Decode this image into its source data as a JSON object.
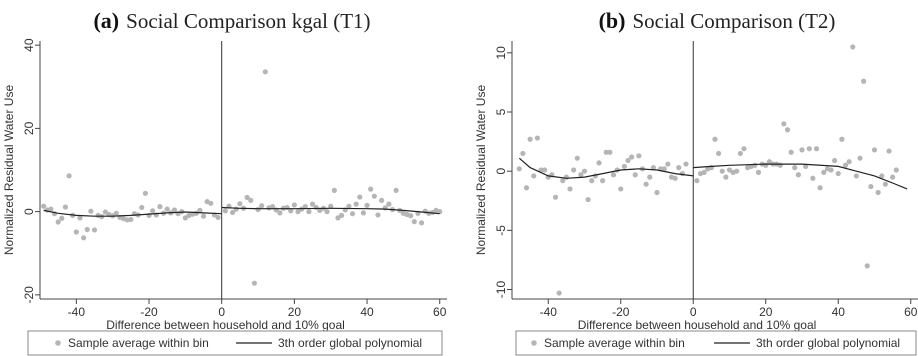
{
  "chart_data": [
    {
      "type": "scatter",
      "panel_tag": "(a)",
      "title": "Social Comparison kgal (T1)",
      "xlabel": "Difference between household and 10% goal",
      "ylabel": "Normalized Residual Water Use",
      "xlim": [
        -50,
        62
      ],
      "ylim": [
        -21,
        41
      ],
      "xticks": [
        -40,
        -20,
        0,
        20,
        40,
        60
      ],
      "yticks": [
        -20,
        0,
        20,
        40
      ],
      "cutoff": 0,
      "grid": false,
      "legend_placement": "bottom",
      "series": [
        {
          "name": "Sample average within bin",
          "kind": "points",
          "color": "#b5b5b5",
          "points": [
            [
              -49,
              1.3
            ],
            [
              -48,
              0.4
            ],
            [
              -47,
              0.6
            ],
            [
              -46,
              -0.5
            ],
            [
              -45,
              -2.5
            ],
            [
              -44,
              -1.6
            ],
            [
              -43,
              1.1
            ],
            [
              -42,
              8.6
            ],
            [
              -41,
              -0.9
            ],
            [
              -40,
              -4.9
            ],
            [
              -39,
              -1.5
            ],
            [
              -38,
              -6.3
            ],
            [
              -37,
              -4.3
            ],
            [
              -36,
              0.1
            ],
            [
              -35,
              -4.4
            ],
            [
              -34,
              -0.9
            ],
            [
              -33,
              -1.2
            ],
            [
              -32,
              -0.1
            ],
            [
              -31,
              -0.7
            ],
            [
              -30,
              -1.0
            ],
            [
              -29,
              -0.4
            ],
            [
              -28,
              -1.4
            ],
            [
              -27,
              -1.7
            ],
            [
              -26,
              -2.0
            ],
            [
              -25,
              -1.9
            ],
            [
              -24,
              -0.5
            ],
            [
              -23,
              -0.8
            ],
            [
              -22,
              1.0
            ],
            [
              -21,
              4.4
            ],
            [
              -20,
              -0.9
            ],
            [
              -19,
              0.2
            ],
            [
              -18,
              -0.8
            ],
            [
              -17,
              1.2
            ],
            [
              -16,
              -0.4
            ],
            [
              -15,
              0.6
            ],
            [
              -14,
              -0.3
            ],
            [
              -13,
              0.4
            ],
            [
              -12,
              -0.5
            ],
            [
              -11,
              0.0
            ],
            [
              -10,
              -1.5
            ],
            [
              -9,
              -0.9
            ],
            [
              -8,
              -0.6
            ],
            [
              -7,
              -0.4
            ],
            [
              -6,
              0.3
            ],
            [
              -5,
              -1.1
            ],
            [
              -4,
              2.4
            ],
            [
              -3,
              2.0
            ],
            [
              -2,
              -0.8
            ],
            [
              -1,
              -1.4
            ],
            [
              1,
              0.2
            ],
            [
              2,
              1.3
            ],
            [
              3,
              -0.2
            ],
            [
              4,
              0.6
            ],
            [
              5,
              1.9
            ],
            [
              6,
              0.8
            ],
            [
              7,
              3.4
            ],
            [
              8,
              2.7
            ],
            [
              9,
              -17.2
            ],
            [
              10,
              0.5
            ],
            [
              11,
              1.4
            ],
            [
              12,
              33.6
            ],
            [
              13,
              0.9
            ],
            [
              14,
              1.2
            ],
            [
              15,
              0.4
            ],
            [
              16,
              -0.3
            ],
            [
              17,
              0.8
            ],
            [
              18,
              1.0
            ],
            [
              19,
              0.2
            ],
            [
              20,
              1.6
            ],
            [
              21,
              0.0
            ],
            [
              22,
              0.6
            ],
            [
              23,
              1.2
            ],
            [
              24,
              0.0
            ],
            [
              25,
              1.8
            ],
            [
              26,
              1.0
            ],
            [
              27,
              0.3
            ],
            [
              28,
              0.8
            ],
            [
              29,
              0.0
            ],
            [
              30,
              1.3
            ],
            [
              31,
              5.1
            ],
            [
              32,
              -1.5
            ],
            [
              33,
              -0.9
            ],
            [
              34,
              0.4
            ],
            [
              35,
              1.3
            ],
            [
              36,
              -0.5
            ],
            [
              37,
              1.8
            ],
            [
              38,
              3.5
            ],
            [
              39,
              -0.3
            ],
            [
              40,
              1.5
            ],
            [
              41,
              5.4
            ],
            [
              42,
              3.7
            ],
            [
              43,
              -0.8
            ],
            [
              44,
              2.7
            ],
            [
              45,
              0.9
            ],
            [
              46,
              1.8
            ],
            [
              47,
              0.5
            ],
            [
              48,
              5.1
            ],
            [
              49,
              0.3
            ],
            [
              50,
              -0.4
            ],
            [
              51,
              -0.7
            ],
            [
              52,
              -1.0
            ],
            [
              53,
              -2.4
            ],
            [
              54,
              -0.4
            ],
            [
              55,
              -2.7
            ],
            [
              56,
              0.1
            ],
            [
              57,
              -0.4
            ],
            [
              58,
              -0.2
            ],
            [
              59,
              0.3
            ],
            [
              60,
              0.0
            ]
          ]
        },
        {
          "name": "3th order global polynomial",
          "kind": "curve",
          "color": "#222222",
          "segments": [
            [
              [
                -49,
                0.3
              ],
              [
                -45,
                -0.4
              ],
              [
                -40,
                -0.9
              ],
              [
                -35,
                -1.1
              ],
              [
                -30,
                -1.1
              ],
              [
                -25,
                -0.9
              ],
              [
                -20,
                -0.6
              ],
              [
                -15,
                -0.3
              ],
              [
                -10,
                -0.1
              ],
              [
                -5,
                -0.3
              ],
              [
                0,
                -0.5
              ]
            ],
            [
              [
                0,
                1.0
              ],
              [
                5,
                0.8
              ],
              [
                10,
                0.7
              ],
              [
                20,
                0.7
              ],
              [
                30,
                0.8
              ],
              [
                40,
                0.7
              ],
              [
                45,
                0.6
              ],
              [
                50,
                0.3
              ],
              [
                55,
                -0.1
              ],
              [
                60,
                -0.5
              ]
            ]
          ]
        }
      ]
    },
    {
      "type": "scatter",
      "panel_tag": "(b)",
      "title": "Social Comparison (T2)",
      "xlabel": "Difference between household and 10% goal",
      "ylabel": "Normalized Residual Water Use",
      "xlim": [
        -50,
        62
      ],
      "ylim": [
        -10.8,
        11
      ],
      "xticks": [
        -40,
        -20,
        0,
        20,
        40,
        60
      ],
      "yticks": [
        -10,
        -5,
        0,
        5,
        10
      ],
      "cutoff": 0,
      "grid": false,
      "legend_placement": "bottom",
      "series": [
        {
          "name": "Sample average within bin",
          "kind": "points",
          "color": "#b5b5b5",
          "points": [
            [
              -48,
              0.2
            ],
            [
              -47,
              1.5
            ],
            [
              -46,
              -1.4
            ],
            [
              -45,
              2.7
            ],
            [
              -44,
              -0.4
            ],
            [
              -43,
              2.8
            ],
            [
              -42,
              0.1
            ],
            [
              -41,
              0.1
            ],
            [
              -40,
              -0.5
            ],
            [
              -39,
              -0.3
            ],
            [
              -38,
              -2.2
            ],
            [
              -37,
              -10.3
            ],
            [
              -36,
              -0.8
            ],
            [
              -35,
              -0.5
            ],
            [
              -34,
              -1.5
            ],
            [
              -33,
              0.1
            ],
            [
              -32,
              1.1
            ],
            [
              -31,
              -0.3
            ],
            [
              -30,
              0.0
            ],
            [
              -29,
              -2.4
            ],
            [
              -28,
              -0.8
            ],
            [
              -27,
              -0.4
            ],
            [
              -26,
              0.7
            ],
            [
              -25,
              -0.8
            ],
            [
              -24,
              1.6
            ],
            [
              -23,
              1.6
            ],
            [
              -22,
              -0.3
            ],
            [
              -21,
              0.1
            ],
            [
              -20,
              -1.5
            ],
            [
              -19,
              0.4
            ],
            [
              -18,
              0.9
            ],
            [
              -17,
              1.2
            ],
            [
              -16,
              -0.3
            ],
            [
              -15,
              1.3
            ],
            [
              -14,
              0.2
            ],
            [
              -13,
              -1.1
            ],
            [
              -12,
              -0.5
            ],
            [
              -11,
              0.3
            ],
            [
              -10,
              -1.8
            ],
            [
              -9,
              0.2
            ],
            [
              -8,
              0.2
            ],
            [
              -7,
              0.6
            ],
            [
              -6,
              -0.5
            ],
            [
              -5,
              -0.6
            ],
            [
              -4,
              0.3
            ],
            [
              -3,
              -0.2
            ],
            [
              -2,
              0.6
            ],
            [
              1,
              -0.8
            ],
            [
              2,
              -0.2
            ],
            [
              3,
              -0.1
            ],
            [
              4,
              0.2
            ],
            [
              5,
              0.3
            ],
            [
              6,
              2.7
            ],
            [
              7,
              1.5
            ],
            [
              8,
              0.0
            ],
            [
              9,
              -0.5
            ],
            [
              10,
              0.1
            ],
            [
              11,
              -0.1
            ],
            [
              12,
              0.0
            ],
            [
              13,
              1.5
            ],
            [
              14,
              1.9
            ],
            [
              15,
              0.3
            ],
            [
              16,
              0.4
            ],
            [
              17,
              0.5
            ],
            [
              18,
              -0.1
            ],
            [
              19,
              0.6
            ],
            [
              20,
              0.5
            ],
            [
              21,
              0.8
            ],
            [
              22,
              0.6
            ],
            [
              23,
              0.6
            ],
            [
              24,
              0.5
            ],
            [
              25,
              4.0
            ],
            [
              26,
              3.5
            ],
            [
              27,
              1.6
            ],
            [
              28,
              0.3
            ],
            [
              29,
              -0.3
            ],
            [
              30,
              1.8
            ],
            [
              31,
              0.4
            ],
            [
              32,
              1.9
            ],
            [
              33,
              -0.6
            ],
            [
              34,
              1.9
            ],
            [
              35,
              -1.4
            ],
            [
              36,
              -0.1
            ],
            [
              37,
              0.2
            ],
            [
              38,
              0.1
            ],
            [
              39,
              0.9
            ],
            [
              40,
              -0.2
            ],
            [
              41,
              2.7
            ],
            [
              42,
              0.5
            ],
            [
              43,
              0.8
            ],
            [
              44,
              10.5
            ],
            [
              45,
              -0.4
            ],
            [
              46,
              1.1
            ],
            [
              47,
              7.6
            ],
            [
              48,
              -8.0
            ],
            [
              49,
              -1.3
            ],
            [
              50,
              1.8
            ],
            [
              51,
              -1.8
            ],
            [
              52,
              -0.4
            ],
            [
              53,
              -1.1
            ],
            [
              54,
              1.7
            ],
            [
              55,
              -0.5
            ],
            [
              56,
              0.1
            ]
          ]
        },
        {
          "name": "3th order global polynomial",
          "kind": "curve",
          "color": "#222222",
          "segments": [
            [
              [
                -48,
                1.1
              ],
              [
                -45,
                0.3
              ],
              [
                -40,
                -0.4
              ],
              [
                -35,
                -0.6
              ],
              [
                -30,
                -0.5
              ],
              [
                -25,
                -0.2
              ],
              [
                -20,
                0.1
              ],
              [
                -15,
                0.2
              ],
              [
                -10,
                0.1
              ],
              [
                -5,
                -0.2
              ],
              [
                0,
                -0.4
              ]
            ],
            [
              [
                0,
                0.3
              ],
              [
                5,
                0.4
              ],
              [
                10,
                0.5
              ],
              [
                20,
                0.6
              ],
              [
                30,
                0.6
              ],
              [
                40,
                0.4
              ],
              [
                45,
                0.0
              ],
              [
                50,
                -0.4
              ],
              [
                55,
                -1.0
              ],
              [
                59,
                -1.5
              ]
            ]
          ]
        }
      ]
    }
  ]
}
